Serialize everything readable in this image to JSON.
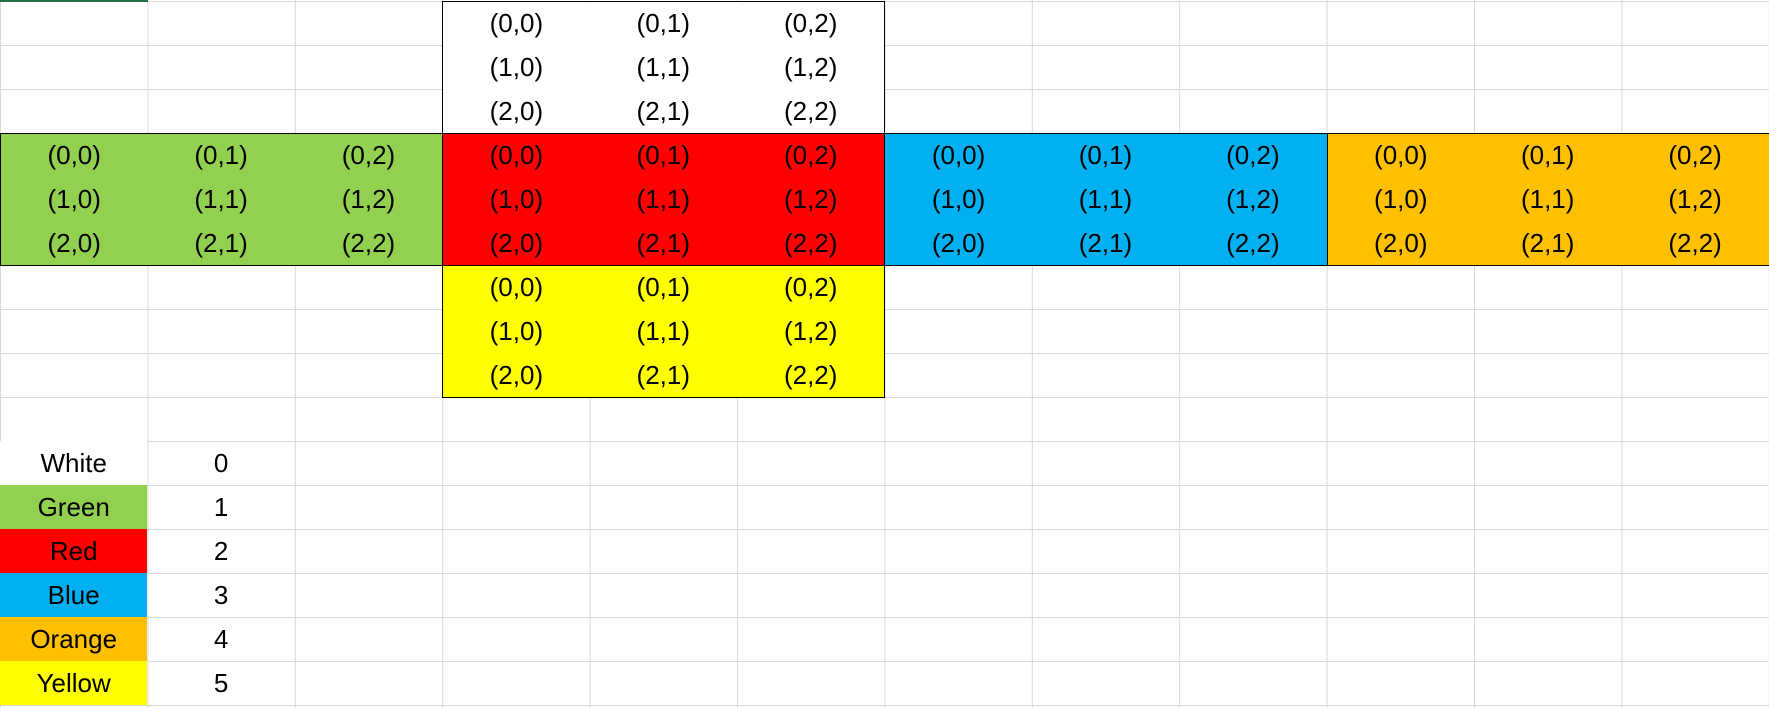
{
  "sheet": {
    "gridline_color": "#d9d9d9",
    "border_color": "#000000"
  },
  "coordinates": [
    [
      "(0,0)",
      "(0,1)",
      "(0,2)"
    ],
    [
      "(1,0)",
      "(1,1)",
      "(1,2)"
    ],
    [
      "(2,0)",
      "(2,1)",
      "(2,2)"
    ]
  ],
  "faces": [
    {
      "name": "white",
      "color": "#ffffff"
    },
    {
      "name": "green",
      "color": "#92d050"
    },
    {
      "name": "red",
      "color": "#ff0000"
    },
    {
      "name": "blue",
      "color": "#00b0f0"
    },
    {
      "name": "orange",
      "color": "#ffc000"
    },
    {
      "name": "yellow",
      "color": "#ffff00"
    }
  ],
  "legend": [
    {
      "label": "White",
      "value": "0",
      "color": "#ffffff"
    },
    {
      "label": "Green",
      "value": "1",
      "color": "#92d050"
    },
    {
      "label": "Red",
      "value": "2",
      "color": "#ff0000"
    },
    {
      "label": "Blue",
      "value": "3",
      "color": "#00b0f0"
    },
    {
      "label": "Orange",
      "value": "4",
      "color": "#ffc000"
    },
    {
      "label": "Yellow",
      "value": "5",
      "color": "#ffff00"
    }
  ]
}
